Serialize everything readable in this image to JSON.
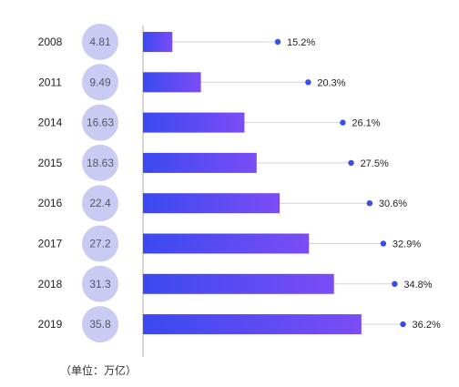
{
  "chart_data": {
    "type": "bar",
    "orientation": "horizontal",
    "categories": [
      "2008",
      "2011",
      "2014",
      "2015",
      "2016",
      "2017",
      "2018",
      "2019"
    ],
    "series": [
      {
        "values": [
          4.81,
          9.49,
          16.63,
          18.63,
          22.4,
          27.2,
          31.3,
          35.8
        ]
      }
    ],
    "value_labels": [
      "4.81",
      "9.49",
      "16.63",
      "18.63",
      "22.4",
      "27.2",
      "31.3",
      "35.8"
    ],
    "percent_values": [
      15.2,
      20.3,
      26.1,
      27.5,
      30.6,
      32.9,
      34.8,
      36.2
    ],
    "percent_labels": [
      "15.2%",
      "20.3%",
      "26.1%",
      "27.5%",
      "30.6%",
      "32.9%",
      "34.8%",
      "36.2%"
    ],
    "unit_note": "（单位：万亿）",
    "colors": {
      "bar_start": "#3b49f0",
      "bar_end": "#7b4cf5",
      "circle": "#c9cbf2",
      "dot": "#3a4de6",
      "leader": "#d4d4d8",
      "axis": "#c8c8cc"
    }
  }
}
